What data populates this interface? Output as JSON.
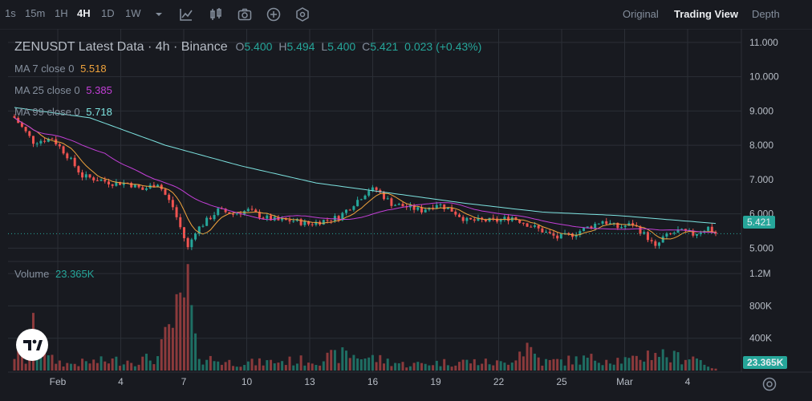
{
  "toolbar": {
    "timeframes": [
      "1s",
      "15m",
      "1H",
      "4H",
      "1D",
      "1W"
    ],
    "active_timeframe": "4H",
    "icons": [
      "chevron-down-icon",
      "indicators-icon",
      "candle-style-icon",
      "camera-icon",
      "add-icon",
      "settings-icon"
    ],
    "views": [
      "Original",
      "Trading View",
      "Depth"
    ],
    "active_view": "Trading View"
  },
  "legend": {
    "symbol": "ZENUSDT Latest Data · 4h · Binance",
    "o_label": "O",
    "o": "5.400",
    "h_label": "H",
    "h": "5.494",
    "l_label": "L",
    "l": "5.400",
    "c_label": "C",
    "c": "5.421",
    "change": "0.023 (+0.43%)"
  },
  "ma": [
    {
      "label": "MA 7 close 0",
      "value": "5.518",
      "color": "#f0a33c"
    },
    {
      "label": "MA 25 close 0",
      "value": "5.385",
      "color": "#c23fd6"
    },
    {
      "label": "MA 99 close 0",
      "value": "5.718",
      "color": "#7de3e0"
    }
  ],
  "volume": {
    "label": "Volume",
    "value": "23.365K"
  },
  "colors": {
    "up": "#26a69a",
    "down": "#ef5350",
    "vol_up": "#1f6e63",
    "vol_down": "#8c3a3c",
    "bg": "#181a20",
    "grid": "#2b2f36"
  },
  "chart_data": {
    "type": "candlestick",
    "price_axis": {
      "ticks": [
        "11.000",
        "10.000",
        "9.000",
        "8.000",
        "7.000",
        "6.000",
        "5.000"
      ],
      "range": [
        4.75,
        11.3
      ]
    },
    "volume_axis": {
      "ticks": [
        "1.2M",
        "800K",
        "400K"
      ],
      "range": [
        0,
        1330000
      ]
    },
    "x_ticks": [
      "Feb",
      "4",
      "7",
      "10",
      "13",
      "16",
      "19",
      "22",
      "25",
      "Mar",
      "4"
    ],
    "last_price": "5.421",
    "last_volume": "23.365K",
    "price_points": [
      [
        0,
        8.8
      ],
      [
        5,
        8.1
      ],
      [
        10,
        8.2
      ],
      [
        14,
        7.7
      ],
      [
        18,
        7.1
      ],
      [
        22,
        7.0
      ],
      [
        26,
        6.9
      ],
      [
        30,
        6.9
      ],
      [
        34,
        6.7
      ],
      [
        38,
        6.9
      ],
      [
        42,
        6.2
      ],
      [
        44,
        5.6
      ],
      [
        46,
        5.0
      ],
      [
        48,
        5.5
      ],
      [
        50,
        5.7
      ],
      [
        54,
        6.1
      ],
      [
        58,
        6.0
      ],
      [
        62,
        6.1
      ],
      [
        66,
        5.9
      ],
      [
        70,
        5.8
      ],
      [
        74,
        5.8
      ],
      [
        78,
        5.7
      ],
      [
        82,
        5.8
      ],
      [
        86,
        5.9
      ],
      [
        90,
        6.3
      ],
      [
        94,
        6.7
      ],
      [
        96,
        6.7
      ],
      [
        100,
        6.3
      ],
      [
        104,
        6.2
      ],
      [
        108,
        6.1
      ],
      [
        112,
        6.3
      ],
      [
        116,
        6.1
      ],
      [
        120,
        5.8
      ],
      [
        124,
        5.8
      ],
      [
        128,
        5.8
      ],
      [
        132,
        5.9
      ],
      [
        136,
        5.7
      ],
      [
        140,
        5.5
      ],
      [
        144,
        5.3
      ],
      [
        148,
        5.4
      ],
      [
        152,
        5.6
      ],
      [
        156,
        5.8
      ],
      [
        160,
        5.6
      ],
      [
        164,
        5.7
      ],
      [
        168,
        5.3
      ],
      [
        170,
        5.0
      ],
      [
        172,
        5.3
      ],
      [
        176,
        5.5
      ],
      [
        180,
        5.4
      ],
      [
        184,
        5.6
      ],
      [
        186,
        5.421
      ]
    ],
    "ma99": [
      [
        0,
        9.1
      ],
      [
        20,
        8.8
      ],
      [
        40,
        8.0
      ],
      [
        60,
        7.4
      ],
      [
        80,
        6.9
      ],
      [
        100,
        6.6
      ],
      [
        120,
        6.3
      ],
      [
        140,
        6.05
      ],
      [
        160,
        5.95
      ],
      [
        186,
        5.718
      ]
    ],
    "volume_points": [
      [
        0,
        250000
      ],
      [
        3,
        150000
      ],
      [
        6,
        800000
      ],
      [
        9,
        180000
      ],
      [
        14,
        100000
      ],
      [
        20,
        130000
      ],
      [
        28,
        160000
      ],
      [
        32,
        150000
      ],
      [
        38,
        200000
      ],
      [
        42,
        730000
      ],
      [
        44,
        880000
      ],
      [
        46,
        1250000
      ],
      [
        48,
        370000
      ],
      [
        50,
        200000
      ],
      [
        56,
        130000
      ],
      [
        64,
        120000
      ],
      [
        70,
        140000
      ],
      [
        80,
        160000
      ],
      [
        88,
        250000
      ],
      [
        96,
        180000
      ],
      [
        104,
        90000
      ],
      [
        112,
        120000
      ],
      [
        120,
        140000
      ],
      [
        130,
        110000
      ],
      [
        136,
        390000
      ],
      [
        140,
        130000
      ],
      [
        148,
        160000
      ],
      [
        156,
        190000
      ],
      [
        164,
        150000
      ],
      [
        170,
        300000
      ],
      [
        174,
        200000
      ],
      [
        180,
        220000
      ],
      [
        186,
        23365
      ]
    ]
  }
}
